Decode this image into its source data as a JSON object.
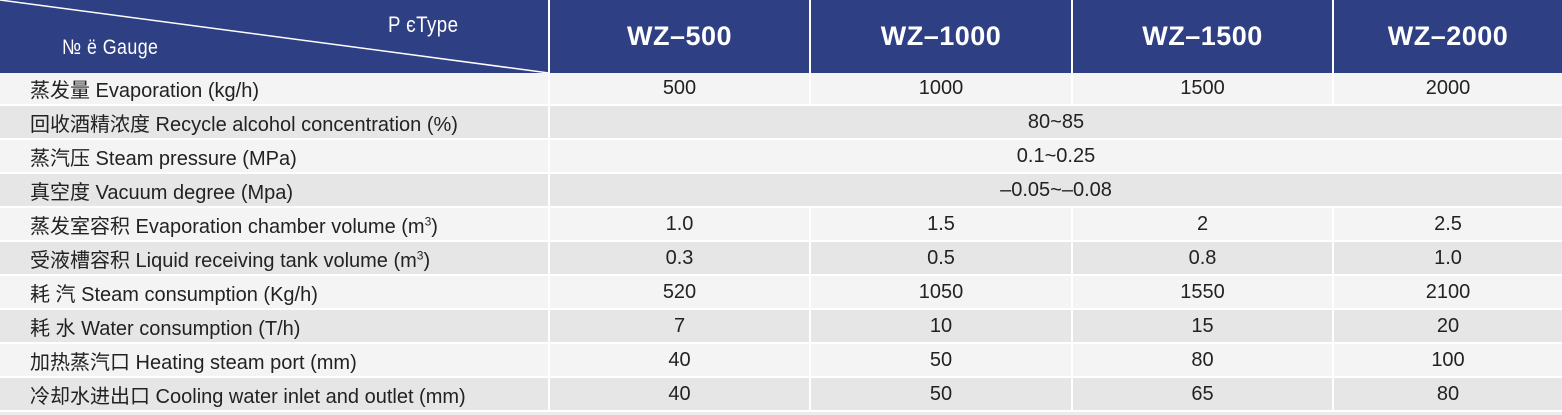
{
  "header": {
    "corner_type": "P єType",
    "corner_gauge": "№ ё Gauge",
    "models": [
      "WZ–500",
      "WZ–1000",
      "WZ–1500",
      "WZ–2000"
    ]
  },
  "rows": [
    {
      "label": "蒸发量 Evaporation (kg/h)",
      "sup": "",
      "label_tail": "",
      "values": [
        "500",
        "1000",
        "1500",
        "2000"
      ],
      "merged": ""
    },
    {
      "label": "回收酒精浓度 Recycle alcohol concentration (%)",
      "sup": "",
      "label_tail": "",
      "values": [],
      "merged": "80~85"
    },
    {
      "label": "蒸汽压 Steam pressure (MPa)",
      "sup": "",
      "label_tail": "",
      "values": [],
      "merged": "0.1~0.25"
    },
    {
      "label": "真空度 Vacuum degree (Mpa)",
      "sup": "",
      "label_tail": "",
      "values": [],
      "merged": "–0.05~–0.08"
    },
    {
      "label": "蒸发室容积 Evaporation chamber volume (m",
      "sup": "3",
      "label_tail": ")",
      "values": [
        "1.0",
        "1.5",
        "2",
        "2.5"
      ],
      "merged": ""
    },
    {
      "label": "受液槽容积 Liquid receiving tank volume (m",
      "sup": "3",
      "label_tail": ")",
      "values": [
        "0.3",
        "0.5",
        "0.8",
        "1.0"
      ],
      "merged": ""
    },
    {
      "label": "耗 汽 Steam consumption (Kg/h)",
      "sup": "",
      "label_tail": "",
      "values": [
        "520",
        "1050",
        "1550",
        "2100"
      ],
      "merged": ""
    },
    {
      "label": "耗 水 Water consumption (T/h)",
      "sup": "",
      "label_tail": "",
      "values": [
        "7",
        "10",
        "15",
        "20"
      ],
      "merged": ""
    },
    {
      "label": "加热蒸汽口 Heating steam port (mm)",
      "sup": "",
      "label_tail": "",
      "values": [
        "40",
        "50",
        "80",
        "100"
      ],
      "merged": ""
    },
    {
      "label": "冷却水进出口 Cooling water inlet and outlet (mm)",
      "sup": "",
      "label_tail": "",
      "values": [
        "40",
        "50",
        "65",
        "80"
      ],
      "merged": ""
    }
  ],
  "colors": {
    "header_bg": "#2f3f84",
    "row_light": "#f4f4f4",
    "row_dark": "#e6e6e6"
  }
}
